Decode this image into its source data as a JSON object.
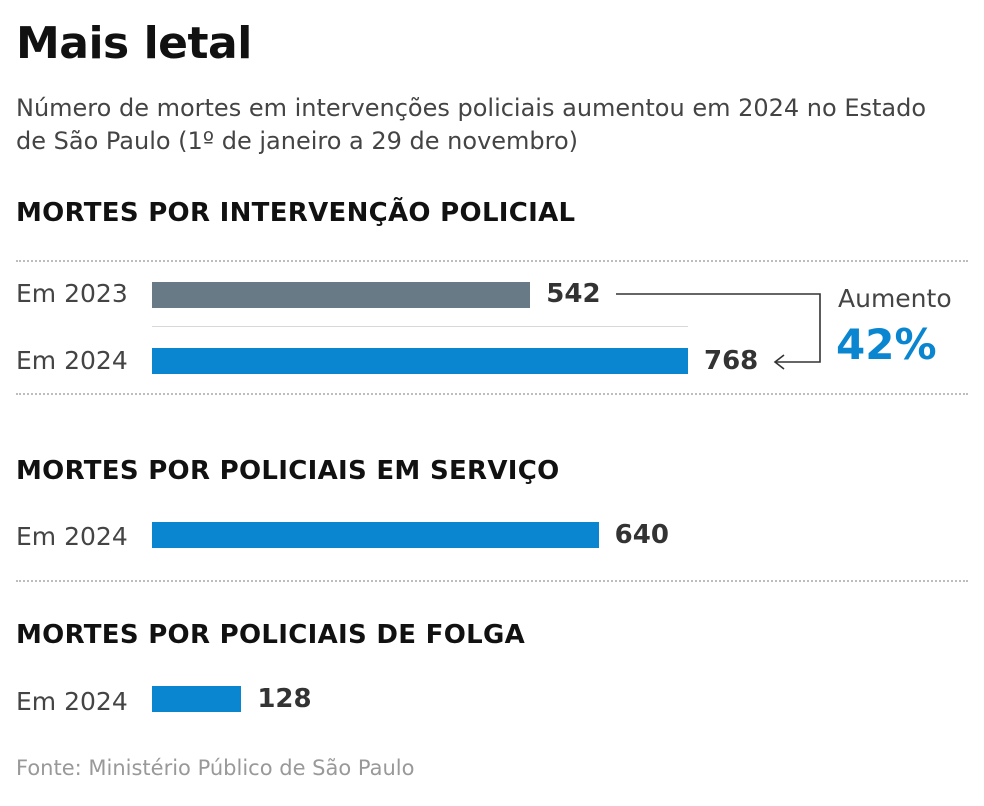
{
  "header": {
    "title": "Mais letal",
    "subtitle": "Número de mortes em intervenções policiais aumentou em 2024 no Estado de São Paulo (1º de janeiro a 29 de novembro)"
  },
  "sections": [
    {
      "title": "MORTES POR INTERVENÇÃO POLICIAL",
      "rows": [
        {
          "label": "Em 2023",
          "value": "542",
          "color": "#677a85"
        },
        {
          "label": "Em 2024",
          "value": "768",
          "color": "#0a86d0"
        }
      ]
    },
    {
      "title": "MORTES POR POLICIAIS EM SERVIÇO",
      "rows": [
        {
          "label": "Em 2024",
          "value": "640",
          "color": "#0a86d0"
        }
      ]
    },
    {
      "title": "MORTES POR POLICIAIS DE FOLGA",
      "rows": [
        {
          "label": "Em 2024",
          "value": "128",
          "color": "#0a86d0"
        }
      ]
    }
  ],
  "annotation": {
    "label": "Aumento",
    "percent": "42%",
    "accent_color": "#0a86d0"
  },
  "source": "Fonte: Ministério Público de São Paulo",
  "chart_data": [
    {
      "type": "bar",
      "title": "MORTES POR INTERVENÇÃO POLICIAL",
      "categories": [
        "Em 2023",
        "Em 2024"
      ],
      "values": [
        542,
        768
      ],
      "orientation": "horizontal"
    },
    {
      "type": "bar",
      "title": "MORTES POR POLICIAIS EM SERVIÇO",
      "categories": [
        "Em 2024"
      ],
      "values": [
        640
      ],
      "orientation": "horizontal"
    },
    {
      "type": "bar",
      "title": "MORTES POR POLICIAIS DE FOLGA",
      "categories": [
        "Em 2024"
      ],
      "values": [
        128
      ],
      "orientation": "horizontal"
    }
  ]
}
